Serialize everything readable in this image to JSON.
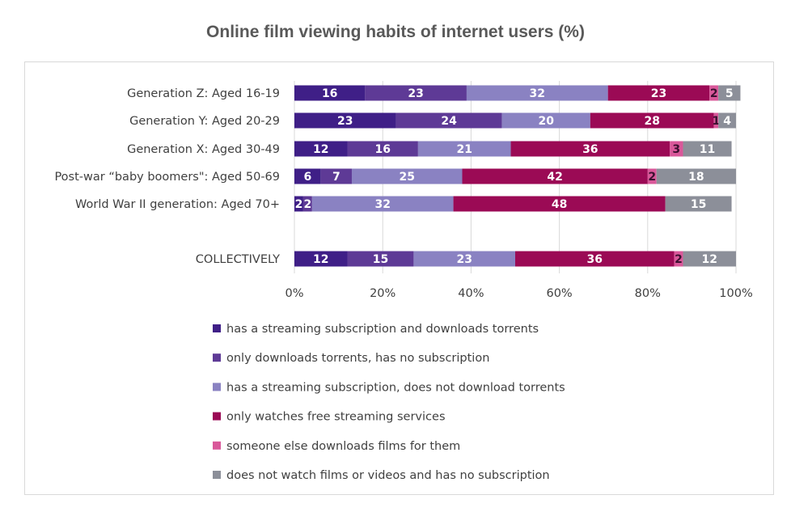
{
  "title": "Online film viewing habits of internet users (%)",
  "chart_data": {
    "type": "bar",
    "orientation": "horizontal",
    "stacked": "100%",
    "title": "Online film viewing habits of internet users (%)",
    "categories": [
      "Generation Z: Aged 16-19",
      "Generation Y: Aged 20-29",
      "Generation X: Aged 30-49",
      "Post-war “baby boomers\": Aged 50-69",
      "World War II generation: Aged 70+",
      "COLLECTIVELY"
    ],
    "series": [
      {
        "name": "has a streaming subscription and downloads torrents",
        "color": "#3f1f87",
        "values": [
          16,
          23,
          12,
          6,
          2,
          12
        ]
      },
      {
        "name": "only downloads torrents, has no subscription",
        "color": "#5e3a96",
        "values": [
          23,
          24,
          16,
          7,
          2,
          15
        ]
      },
      {
        "name": "has a streaming subscription, does not download torrents",
        "color": "#8a82c2",
        "values": [
          32,
          20,
          21,
          25,
          32,
          23
        ]
      },
      {
        "name": "only watches free streaming services",
        "color": "#9b0a55",
        "values": [
          23,
          28,
          36,
          42,
          48,
          36
        ]
      },
      {
        "name": "someone else downloads films for them",
        "color": "#d9589a",
        "values": [
          2,
          1,
          3,
          2,
          0,
          2
        ]
      },
      {
        "name": "does not watch films or videos and has no subscription",
        "color": "#8c8f99",
        "values": [
          5,
          4,
          11,
          18,
          15,
          12
        ]
      }
    ],
    "x_ticks": [
      "0%",
      "20%",
      "40%",
      "60%",
      "80%",
      "100%"
    ],
    "xlim": [
      0,
      100
    ],
    "grid": "vertical",
    "legend": "bottom"
  }
}
